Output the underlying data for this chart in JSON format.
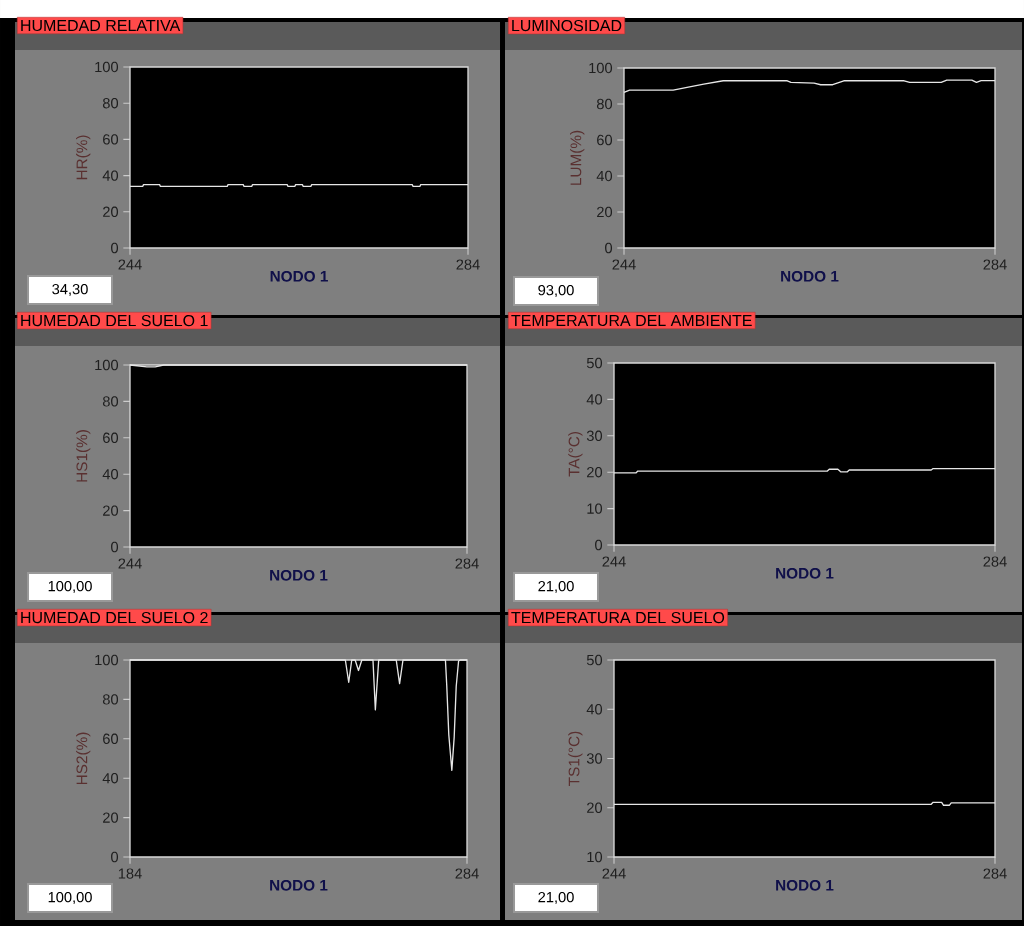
{
  "chart_data": [
    {
      "type": "line",
      "title": "HUMEDAD RELATIVA",
      "xlabel": "NODO 1",
      "ylabel": "HR(%)",
      "color": "#e6e6e6",
      "xlim": [
        244,
        284
      ],
      "ylim": [
        0,
        100
      ],
      "xticks": [
        244,
        284
      ],
      "yticks": [
        0,
        20,
        40,
        60,
        80,
        100
      ],
      "annotations": [
        "34,30"
      ],
      "x": [
        244,
        245.5,
        245.6,
        247.5,
        247.6,
        255.5,
        255.6,
        257.4,
        257.5,
        258.4,
        258.5,
        262.6,
        262.7,
        263.5,
        263.6,
        264.4,
        264.5,
        265.4,
        265.5,
        277.4,
        277.5,
        278.3,
        278.4,
        284
      ],
      "values": [
        34,
        34,
        35,
        35,
        34,
        34,
        35,
        35,
        34,
        34,
        35,
        35,
        34,
        34,
        35,
        35,
        34,
        34,
        35,
        35,
        34,
        34,
        35,
        35
      ]
    },
    {
      "type": "line",
      "title": "LUMINOSIDAD",
      "xlabel": "NODO 1",
      "ylabel": "LUM(%)",
      "color": "#e6e6e6",
      "xlim": [
        244,
        284
      ],
      "ylim": [
        0,
        100
      ],
      "xticks": [
        244,
        284
      ],
      "yticks": [
        0,
        20,
        40,
        60,
        80,
        100
      ],
      "annotations": [
        "93,00"
      ],
      "x": [
        244,
        244.6,
        249.3,
        250.8,
        252.6,
        254.7,
        261.6,
        262,
        264.5,
        265.2,
        266.5,
        267.7,
        274.2,
        274.8,
        278.2,
        278.8,
        281.5,
        282,
        282.5,
        284
      ],
      "values": [
        86.4,
        87.7,
        87.7,
        89.2,
        91,
        92.9,
        92.9,
        92,
        91.6,
        90.7,
        90.7,
        92.9,
        92.9,
        92,
        92,
        93.3,
        93.3,
        92,
        93,
        93
      ]
    },
    {
      "type": "line",
      "title": "HUMEDAD DEL SUELO 1",
      "xlabel": "NODO 1",
      "ylabel": "HS1(%)",
      "color": "#e6e6e6",
      "xlim": [
        244,
        284
      ],
      "ylim": [
        0,
        100
      ],
      "xticks": [
        244,
        284
      ],
      "yticks": [
        0,
        20,
        40,
        60,
        80,
        100
      ],
      "annotations": [
        "100,00"
      ],
      "x": [
        244,
        246,
        247,
        248,
        284
      ],
      "values": [
        100,
        99,
        99,
        100,
        100
      ]
    },
    {
      "type": "line",
      "title": "TEMPERATURA DEL AMBIENTE",
      "xlabel": "NODO 1",
      "ylabel": "TA(°C)",
      "color": "#e6e6e6",
      "xlim": [
        244,
        284
      ],
      "ylim": [
        0,
        50
      ],
      "xticks": [
        244,
        284
      ],
      "yticks": [
        0,
        10,
        20,
        30,
        40,
        50
      ],
      "annotations": [
        "21,00"
      ],
      "x": [
        244,
        246.3,
        246.5,
        266.4,
        266.6,
        267.5,
        267.8,
        268.5,
        268.7,
        277.3,
        277.5,
        284
      ],
      "values": [
        19.8,
        19.8,
        20.3,
        20.3,
        20.8,
        20.8,
        20.1,
        20.1,
        20.6,
        20.6,
        21,
        21
      ]
    },
    {
      "type": "line",
      "title": "HUMEDAD DEL SUELO 2",
      "xlabel": "NODO 1",
      "ylabel": "HS2(%)",
      "color": "#e6e6e6",
      "xlim": [
        184,
        284
      ],
      "ylim": [
        0,
        100
      ],
      "xticks": [
        184,
        284
      ],
      "yticks": [
        0,
        20,
        40,
        60,
        80,
        100
      ],
      "annotations": [
        "100,00"
      ],
      "x": [
        184,
        247.9,
        248.9,
        249.8,
        250.8,
        251.8,
        252.8,
        256.1,
        256.8,
        257.8,
        263,
        264,
        265,
        277.6,
        278,
        278.6,
        279.5,
        280.2,
        280.8,
        281.5,
        282,
        284
      ],
      "values": [
        100,
        100,
        88.7,
        100,
        100,
        94.7,
        100,
        100,
        74.7,
        100,
        100,
        88,
        100,
        100,
        86.7,
        62,
        44,
        61,
        86.7,
        99.5,
        100,
        100
      ]
    },
    {
      "type": "line",
      "title": "TEMPERATURA DEL SUELO",
      "xlabel": "NODO 1",
      "ylabel": "TS1(°C)",
      "color": "#e6e6e6",
      "xlim": [
        244,
        284
      ],
      "ylim": [
        10,
        50
      ],
      "xticks": [
        244,
        284
      ],
      "yticks": [
        10,
        20,
        30,
        40,
        50
      ],
      "annotations": [
        "21,00"
      ],
      "x": [
        244,
        277.3,
        277.5,
        278.4,
        278.6,
        279.2,
        279.4,
        284
      ],
      "values": [
        20.7,
        20.7,
        21.1,
        21.1,
        20.5,
        20.5,
        21,
        21
      ]
    }
  ]
}
